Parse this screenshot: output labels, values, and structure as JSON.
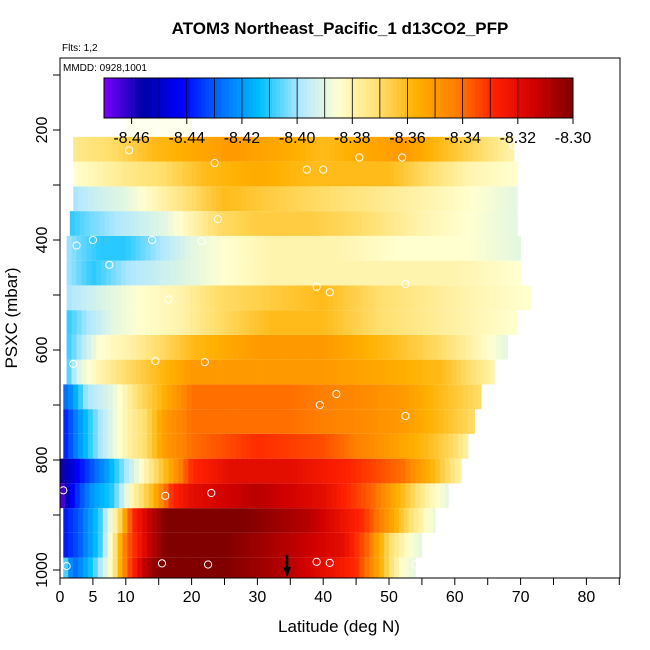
{
  "chart_data": {
    "type": "heatmap",
    "title": "ATOM3 Northeast_Pacific_1 d13CO2_PFP",
    "flights_label": "Flts: 1,2",
    "dates_label": "MMDD: 0928,1001",
    "xlabel": "Latitude (deg N)",
    "ylabel": "PSXC (mbar)",
    "xlim": [
      0,
      85
    ],
    "ylim_reversed": [
      1000,
      60
    ],
    "x_ticks": [
      0,
      5,
      10,
      20,
      30,
      40,
      50,
      60,
      70,
      80
    ],
    "x_tick_labels": [
      "0",
      "5",
      "10",
      "20",
      "30",
      "40",
      "50",
      "60",
      "70",
      "80"
    ],
    "y_ticks": [
      200,
      400,
      600,
      800,
      1000
    ],
    "y_tick_labels": [
      "200",
      "400",
      "600",
      "800",
      "1000"
    ],
    "colorbar": {
      "range": [
        -8.47,
        -8.3
      ],
      "ticks": [
        -8.46,
        -8.44,
        -8.42,
        -8.4,
        -8.38,
        -8.36,
        -8.34,
        -8.32,
        -8.3
      ],
      "tick_labels": [
        "-8.46",
        "-8.44",
        "-8.42",
        "-8.40",
        "-8.38",
        "-8.36",
        "-8.34",
        "-8.32",
        "-8.30"
      ],
      "colors": [
        "#7b00ff",
        "#0000a8",
        "#0000ff",
        "#0070ff",
        "#00c0ff",
        "#b0e8ff",
        "#ffffd0",
        "#ffe070",
        "#ffb000",
        "#ff8000",
        "#ff2000",
        "#d00000",
        "#800000"
      ]
    },
    "layer_step_mbar": 45,
    "layers": [
      {
        "p": 1000,
        "x0": 0.5,
        "x1": 54,
        "nodes": [
          [
            0.5,
            -8.4
          ],
          [
            2,
            -8.43
          ],
          [
            5,
            -8.41
          ],
          [
            8,
            -8.38
          ],
          [
            10,
            -8.34
          ],
          [
            13,
            -8.31
          ],
          [
            15,
            -8.3
          ],
          [
            25,
            -8.3
          ],
          [
            35,
            -8.31
          ],
          [
            40,
            -8.32
          ],
          [
            45,
            -8.33
          ],
          [
            48,
            -8.35
          ],
          [
            50,
            -8.37
          ],
          [
            52,
            -8.385
          ],
          [
            54,
            -8.39
          ]
        ]
      },
      {
        "p": 955,
        "x0": 0.5,
        "x1": 55,
        "nodes": [
          [
            0.5,
            -8.44
          ],
          [
            3,
            -8.43
          ],
          [
            6,
            -8.41
          ],
          [
            8,
            -8.38
          ],
          [
            10,
            -8.34
          ],
          [
            14,
            -8.31
          ],
          [
            16,
            -8.3
          ],
          [
            25,
            -8.3
          ],
          [
            35,
            -8.31
          ],
          [
            43,
            -8.32
          ],
          [
            47,
            -8.34
          ],
          [
            50,
            -8.37
          ],
          [
            53,
            -8.385
          ],
          [
            55,
            -8.39
          ]
        ]
      },
      {
        "p": 910,
        "x0": 0.5,
        "x1": 57,
        "nodes": [
          [
            0.5,
            -8.44
          ],
          [
            3,
            -8.43
          ],
          [
            6,
            -8.41
          ],
          [
            9,
            -8.37
          ],
          [
            11,
            -8.33
          ],
          [
            14,
            -8.31
          ],
          [
            16,
            -8.3
          ],
          [
            28,
            -8.3
          ],
          [
            38,
            -8.31
          ],
          [
            46,
            -8.33
          ],
          [
            50,
            -8.35
          ],
          [
            53,
            -8.37
          ],
          [
            57,
            -8.39
          ]
        ]
      },
      {
        "p": 865,
        "x0": 0.0,
        "x1": 59,
        "nodes": [
          [
            0,
            -8.47
          ],
          [
            2,
            -8.44
          ],
          [
            5,
            -8.42
          ],
          [
            8,
            -8.41
          ],
          [
            11,
            -8.38
          ],
          [
            14,
            -8.36
          ],
          [
            17,
            -8.33
          ],
          [
            20,
            -8.32
          ],
          [
            30,
            -8.31
          ],
          [
            40,
            -8.32
          ],
          [
            48,
            -8.34
          ],
          [
            52,
            -8.36
          ],
          [
            56,
            -8.38
          ],
          [
            59,
            -8.39
          ]
        ]
      },
      {
        "p": 820,
        "x0": 0.0,
        "x1": 61,
        "nodes": [
          [
            0,
            -8.46
          ],
          [
            3,
            -8.44
          ],
          [
            7,
            -8.42
          ],
          [
            10,
            -8.4
          ],
          [
            13,
            -8.38
          ],
          [
            16,
            -8.36
          ],
          [
            20,
            -8.33
          ],
          [
            26,
            -8.32
          ],
          [
            35,
            -8.32
          ],
          [
            45,
            -8.33
          ],
          [
            52,
            -8.34
          ],
          [
            57,
            -8.36
          ],
          [
            61,
            -8.38
          ]
        ]
      },
      {
        "p": 775,
        "x0": 0.5,
        "x1": 62,
        "nodes": [
          [
            0.5,
            -8.44
          ],
          [
            3,
            -8.42
          ],
          [
            6,
            -8.4
          ],
          [
            10,
            -8.38
          ],
          [
            13,
            -8.37
          ],
          [
            16,
            -8.35
          ],
          [
            20,
            -8.34
          ],
          [
            30,
            -8.33
          ],
          [
            40,
            -8.335
          ],
          [
            50,
            -8.35
          ],
          [
            56,
            -8.36
          ],
          [
            60,
            -8.37
          ],
          [
            62,
            -8.38
          ]
        ]
      },
      {
        "p": 730,
        "x0": 0.5,
        "x1": 63,
        "nodes": [
          [
            0.5,
            -8.44
          ],
          [
            3,
            -8.42
          ],
          [
            6,
            -8.4
          ],
          [
            10,
            -8.38
          ],
          [
            13,
            -8.37
          ],
          [
            16,
            -8.35
          ],
          [
            20,
            -8.34
          ],
          [
            35,
            -8.34
          ],
          [
            45,
            -8.345
          ],
          [
            52,
            -8.35
          ],
          [
            58,
            -8.36
          ],
          [
            63,
            -8.37
          ]
        ]
      },
      {
        "p": 685,
        "x0": 0.5,
        "x1": 64,
        "nodes": [
          [
            0.5,
            -8.43
          ],
          [
            2,
            -8.42
          ],
          [
            4,
            -8.4
          ],
          [
            8,
            -8.39
          ],
          [
            12,
            -8.37
          ],
          [
            15,
            -8.36
          ],
          [
            20,
            -8.34
          ],
          [
            35,
            -8.34
          ],
          [
            45,
            -8.345
          ],
          [
            52,
            -8.35
          ],
          [
            58,
            -8.36
          ],
          [
            64,
            -8.37
          ]
        ]
      },
      {
        "p": 640,
        "x0": 1.0,
        "x1": 66,
        "nodes": [
          [
            1,
            -8.41
          ],
          [
            3,
            -8.39
          ],
          [
            6,
            -8.38
          ],
          [
            10,
            -8.37
          ],
          [
            15,
            -8.36
          ],
          [
            20,
            -8.35
          ],
          [
            30,
            -8.35
          ],
          [
            40,
            -8.35
          ],
          [
            50,
            -8.355
          ],
          [
            58,
            -8.36
          ],
          [
            62,
            -8.37
          ],
          [
            66,
            -8.38
          ]
        ]
      },
      {
        "p": 595,
        "x0": 1.0,
        "x1": 68,
        "nodes": [
          [
            1,
            -8.41
          ],
          [
            3,
            -8.4
          ],
          [
            6,
            -8.385
          ],
          [
            10,
            -8.38
          ],
          [
            15,
            -8.37
          ],
          [
            20,
            -8.36
          ],
          [
            30,
            -8.35
          ],
          [
            40,
            -8.35
          ],
          [
            50,
            -8.36
          ],
          [
            58,
            -8.37
          ],
          [
            63,
            -8.38
          ],
          [
            68,
            -8.39
          ]
        ]
      },
      {
        "p": 550,
        "x0": 1.0,
        "x1": 69.5,
        "nodes": [
          [
            1,
            -8.41
          ],
          [
            4,
            -8.4
          ],
          [
            8,
            -8.39
          ],
          [
            12,
            -8.385
          ],
          [
            18,
            -8.38
          ],
          [
            24,
            -8.37
          ],
          [
            32,
            -8.36
          ],
          [
            40,
            -8.36
          ],
          [
            48,
            -8.37
          ],
          [
            55,
            -8.375
          ],
          [
            62,
            -8.38
          ],
          [
            69.5,
            -8.385
          ]
        ]
      },
      {
        "p": 505,
        "x0": 1.0,
        "x1": 71.5,
        "nodes": [
          [
            1,
            -8.4
          ],
          [
            4,
            -8.395
          ],
          [
            8,
            -8.39
          ],
          [
            12,
            -8.385
          ],
          [
            18,
            -8.38
          ],
          [
            24,
            -8.37
          ],
          [
            32,
            -8.365
          ],
          [
            40,
            -8.36
          ],
          [
            48,
            -8.37
          ],
          [
            55,
            -8.375
          ],
          [
            62,
            -8.38
          ],
          [
            71.5,
            -8.385
          ]
        ]
      },
      {
        "p": 460,
        "x0": 1.0,
        "x1": 70,
        "nodes": [
          [
            1,
            -8.4
          ],
          [
            5,
            -8.41
          ],
          [
            10,
            -8.4
          ],
          [
            15,
            -8.395
          ],
          [
            20,
            -8.39
          ],
          [
            25,
            -8.385
          ],
          [
            32,
            -8.38
          ],
          [
            40,
            -8.38
          ],
          [
            50,
            -8.38
          ],
          [
            60,
            -8.38
          ],
          [
            70,
            -8.385
          ]
        ]
      },
      {
        "p": 415,
        "x0": 1.0,
        "x1": 70,
        "nodes": [
          [
            1,
            -8.4
          ],
          [
            3,
            -8.405
          ],
          [
            6,
            -8.41
          ],
          [
            10,
            -8.41
          ],
          [
            15,
            -8.4
          ],
          [
            20,
            -8.39
          ],
          [
            25,
            -8.385
          ],
          [
            32,
            -8.38
          ],
          [
            42,
            -8.38
          ],
          [
            52,
            -8.385
          ],
          [
            62,
            -8.385
          ],
          [
            70,
            -8.39
          ]
        ]
      },
      {
        "p": 370,
        "x0": 1.5,
        "x1": 69.5,
        "nodes": [
          [
            1.5,
            -8.41
          ],
          [
            4,
            -8.405
          ],
          [
            8,
            -8.4
          ],
          [
            12,
            -8.395
          ],
          [
            16,
            -8.39
          ],
          [
            20,
            -8.38
          ],
          [
            24,
            -8.37
          ],
          [
            30,
            -8.365
          ],
          [
            38,
            -8.365
          ],
          [
            46,
            -8.37
          ],
          [
            55,
            -8.38
          ],
          [
            62,
            -8.385
          ],
          [
            69.5,
            -8.39
          ]
        ]
      },
      {
        "p": 325,
        "x0": 2.0,
        "x1": 69.5,
        "nodes": [
          [
            2,
            -8.4
          ],
          [
            5,
            -8.395
          ],
          [
            10,
            -8.39
          ],
          [
            15,
            -8.38
          ],
          [
            20,
            -8.37
          ],
          [
            25,
            -8.36
          ],
          [
            32,
            -8.365
          ],
          [
            40,
            -8.37
          ],
          [
            48,
            -8.375
          ],
          [
            56,
            -8.38
          ],
          [
            63,
            -8.385
          ],
          [
            69.5,
            -8.39
          ]
        ]
      },
      {
        "p": 280,
        "x0": 2.0,
        "x1": 69.5,
        "nodes": [
          [
            2,
            -8.385
          ],
          [
            6,
            -8.38
          ],
          [
            10,
            -8.375
          ],
          [
            16,
            -8.37
          ],
          [
            22,
            -8.36
          ],
          [
            30,
            -8.355
          ],
          [
            38,
            -8.36
          ],
          [
            45,
            -8.36
          ],
          [
            50,
            -8.36
          ],
          [
            56,
            -8.37
          ],
          [
            62,
            -8.38
          ],
          [
            69.5,
            -8.385
          ]
        ]
      },
      {
        "p": 235,
        "x0": 2.0,
        "x1": 69,
        "nodes": [
          [
            2,
            -8.375
          ],
          [
            8,
            -8.37
          ],
          [
            14,
            -8.36
          ],
          [
            20,
            -8.355
          ],
          [
            26,
            -8.35
          ],
          [
            34,
            -8.355
          ],
          [
            40,
            -8.36
          ],
          [
            46,
            -8.355
          ],
          [
            52,
            -8.35
          ],
          [
            58,
            -8.36
          ],
          [
            64,
            -8.37
          ],
          [
            69,
            -8.38
          ]
        ]
      },
      {
        "p": 190,
        "x0": 10.0,
        "x1": 20,
        "nodes": [
          [
            10,
            -8.385
          ],
          [
            15,
            -8.385
          ],
          [
            20,
            -8.385
          ]
        ]
      }
    ],
    "sample_points": [
      {
        "lat": 1.0,
        "p": 993
      },
      {
        "lat": 15.5,
        "p": 988
      },
      {
        "lat": 22.5,
        "p": 990
      },
      {
        "lat": 39.0,
        "p": 985
      },
      {
        "lat": 41.0,
        "p": 987
      },
      {
        "lat": 54.0,
        "p": 990
      },
      {
        "lat": 0.5,
        "p": 855
      },
      {
        "lat": 16.0,
        "p": 865
      },
      {
        "lat": 23.0,
        "p": 860
      },
      {
        "lat": 52.5,
        "p": 720
      },
      {
        "lat": 39.5,
        "p": 700
      },
      {
        "lat": 42.0,
        "p": 680
      },
      {
        "lat": 2.0,
        "p": 625
      },
      {
        "lat": 14.5,
        "p": 620
      },
      {
        "lat": 22.0,
        "p": 622
      },
      {
        "lat": 16.5,
        "p": 508
      },
      {
        "lat": 39.0,
        "p": 485
      },
      {
        "lat": 41.0,
        "p": 495
      },
      {
        "lat": 52.5,
        "p": 480
      },
      {
        "lat": 7.5,
        "p": 445
      },
      {
        "lat": 2.5,
        "p": 410
      },
      {
        "lat": 5.0,
        "p": 400
      },
      {
        "lat": 14.0,
        "p": 400
      },
      {
        "lat": 21.5,
        "p": 402
      },
      {
        "lat": 24.0,
        "p": 362
      },
      {
        "lat": 23.5,
        "p": 260
      },
      {
        "lat": 37.5,
        "p": 272
      },
      {
        "lat": 40.0,
        "p": 272
      },
      {
        "lat": 45.5,
        "p": 250
      },
      {
        "lat": 52.0,
        "p": 250
      },
      {
        "lat": 69.0,
        "p": 228
      },
      {
        "lat": 10.5,
        "p": 237
      },
      {
        "lat": 10.0,
        "p": 200
      }
    ],
    "arrow_lat": 34.5
  }
}
